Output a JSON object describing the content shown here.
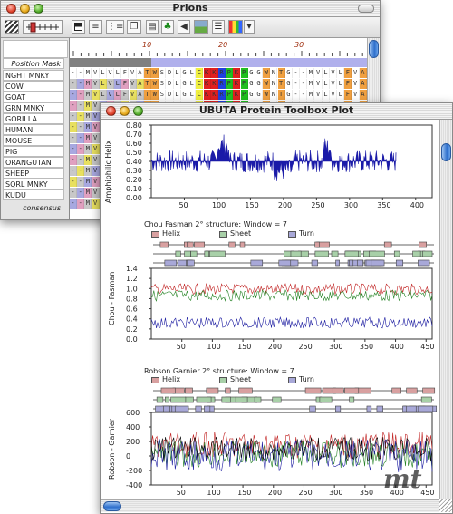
{
  "prions_window": {
    "title": "Prions",
    "toolbar_icons": [
      "pattern-icon",
      "slider-icon",
      "frame-icon",
      "align-left-icon",
      "tree-list-icon",
      "pages-icon",
      "document-icon",
      "tree-icon",
      "speaker-icon",
      "image-icon",
      "dna-icon",
      "color-grid-icon",
      "dropdown-icon"
    ],
    "ruler_numbers": [
      "10",
      "20",
      "30"
    ],
    "position_mask_label": "Position Mask",
    "consensus_label": "consensus",
    "sequence_names": [
      "NGHT MNKY",
      "COW",
      "GOAT",
      "GRN MNKY",
      "GORILLA",
      "HUMAN",
      "MOUSE",
      "PIG",
      "ORANGUTAN",
      "SHEEP",
      "SQRL MNKY",
      "KUDU"
    ],
    "sequence_fragment": "--MVLVLFVATWSDLGLCKKRPKPGGWNTG",
    "colors": {
      "mask_bar": "#b0b0ec",
      "mask_gray": "#808080"
    }
  },
  "plot_window": {
    "title": "UBUTA Protein Toolbox Plot",
    "amphiphilic": {
      "ylabel": "Amphiphilic Helix",
      "yticks": [
        "0.80",
        "0.70",
        "0.60",
        "0.50",
        "0.40",
        "0.30",
        "0.20",
        "0.10",
        "0.00"
      ],
      "xticks": [
        "50",
        "100",
        "150",
        "200",
        "250",
        "300",
        "350",
        "400"
      ]
    },
    "chou_fasman": {
      "header": "Chou Fasman 2° structure:   Window = 7",
      "legend": [
        "Helix",
        "Sheet",
        "Turn"
      ],
      "ylabel": "Chou - Fasman",
      "yticks": [
        "1.4",
        "1.2",
        "1.0",
        "0.8",
        "0.6",
        "0.4",
        "0.2",
        "0.0"
      ],
      "xticks": [
        "50",
        "100",
        "150",
        "200",
        "250",
        "300",
        "350",
        "400",
        "450"
      ]
    },
    "robson_garnier": {
      "header": "Robson Garnier 2° structure:   Window = 7",
      "legend": [
        "Helix",
        "Sheet",
        "Turn"
      ],
      "ylabel": "Robson - Garnier",
      "yticks": [
        "600",
        "400",
        "200",
        "0",
        "-200",
        "-400"
      ],
      "xticks": [
        "50",
        "100",
        "150",
        "200",
        "250",
        "300",
        "350",
        "400",
        "450"
      ]
    },
    "colors": {
      "helix": "#d8a0a0",
      "sheet": "#a8d0a8",
      "turn": "#a8a8d8",
      "amph_fill": "#1a1aa8",
      "red_line": "#c02020",
      "green_line": "#208020",
      "blue_line": "#1a1aa0",
      "black_line": "#000000"
    }
  },
  "watermark": "mt"
}
